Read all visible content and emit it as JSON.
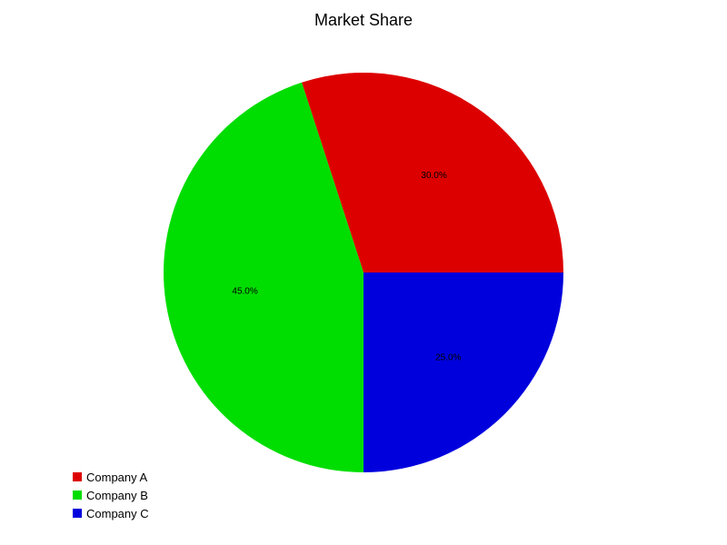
{
  "chart_data": {
    "type": "pie",
    "title": "Market Share",
    "categories": [
      "Company A",
      "Company B",
      "Company C"
    ],
    "values": [
      30.0,
      45.0,
      25.0
    ],
    "labels": [
      "30.0%",
      "45.0%",
      "25.0%"
    ],
    "colors": [
      "#dd0000",
      "#00dd00",
      "#0000dd"
    ],
    "legend_position": "bottom-left"
  }
}
